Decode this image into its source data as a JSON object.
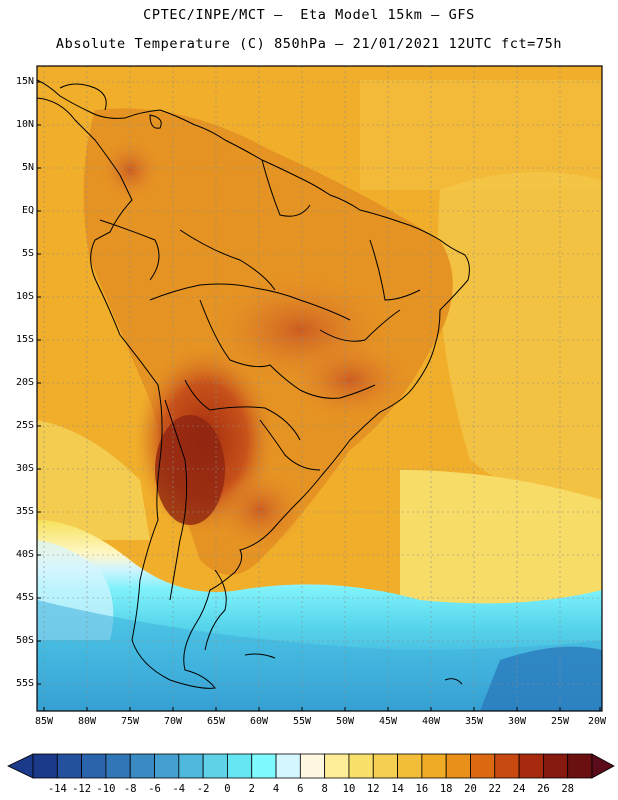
{
  "header": {
    "line1": "CPTEC/INPE/MCT –  Eta Model 15km – GFS",
    "line2": "Absolute Temperature (C) 850hPa – 21/01/2021 12UTC fct=75h"
  },
  "map": {
    "lat_labels": [
      "15N",
      "10N",
      "5N",
      "EQ",
      "5S",
      "10S",
      "15S",
      "20S",
      "25S",
      "30S",
      "35S",
      "40S",
      "45S",
      "50S",
      "55S"
    ],
    "lon_labels": [
      "85W",
      "80W",
      "75W",
      "70W",
      "65W",
      "60W",
      "55W",
      "50W",
      "45W",
      "40W",
      "35W",
      "30W",
      "25W",
      "20W"
    ],
    "lon_range": [
      -85,
      -20
    ],
    "lat_range": [
      15,
      -55
    ]
  },
  "colorbar": {
    "labels": [
      "-14",
      "-12",
      "-10",
      "-8",
      "-6",
      "-4",
      "-2",
      "0",
      "2",
      "4",
      "6",
      "8",
      "10",
      "12",
      "14",
      "16",
      "18",
      "20",
      "22",
      "24",
      "26",
      "28"
    ],
    "colors": [
      "#1c3a8a",
      "#24519e",
      "#2a64ad",
      "#3177b8",
      "#3a8ac4",
      "#44a0d0",
      "#4fb8dc",
      "#5fd2e8",
      "#66e6f2",
      "#7ffbff",
      "#d4f6ff",
      "#fff8e0",
      "#ffee99",
      "#f8e06a",
      "#f4cf52",
      "#f2be3a",
      "#efab24",
      "#e8901a",
      "#dc6a12",
      "#c84a10",
      "#a82a0e",
      "#861a10",
      "#6a1010"
    ]
  }
}
